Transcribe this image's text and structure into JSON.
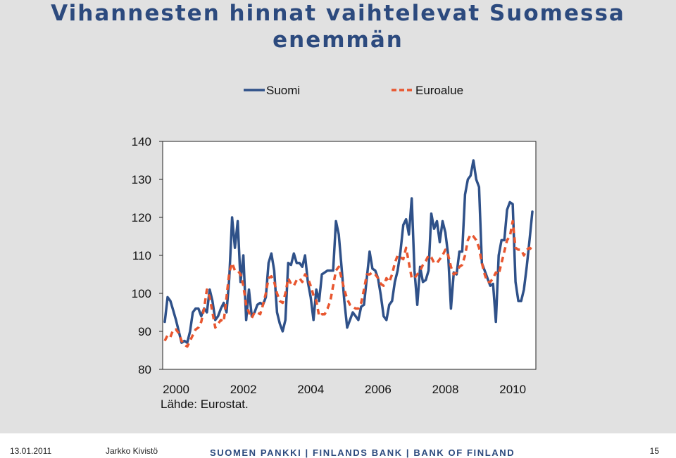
{
  "slide": {
    "title_line1": "Vihannesten hinnat vaihtelevat Suomessa",
    "title_line2": "enemmän",
    "source": "Lähde: Eurostat."
  },
  "footer": {
    "date": "13.01.2011",
    "author": "Jarkko Kivistö",
    "bank": "SUOMEN PANKKI | FINLANDS BANK | BANK OF FINLAND",
    "page": "15"
  },
  "chart_data": {
    "type": "line",
    "x_start": "2000-01",
    "x_step": "month",
    "x_ticks": [
      "2000",
      "2002",
      "2004",
      "2006",
      "2008",
      "2010"
    ],
    "ylim": [
      80,
      140
    ],
    "y_ticks": [
      "140",
      "130",
      "120",
      "110",
      "100",
      "90",
      "80"
    ],
    "legend_position": "top",
    "series": [
      {
        "name": "Suomi",
        "color": "#2f5189",
        "style": "solid",
        "values": [
          92.5,
          99,
          98,
          95.5,
          93,
          90,
          87,
          87.5,
          87,
          90,
          95,
          96,
          96,
          94,
          96,
          95,
          101,
          98,
          93,
          94,
          96,
          97.5,
          95,
          104,
          120,
          112,
          119,
          103,
          110,
          93,
          101,
          94,
          95,
          97,
          97.5,
          97,
          99,
          108,
          110.5,
          106,
          95,
          92,
          90,
          93,
          108,
          107.5,
          110.5,
          108,
          108,
          107,
          110,
          103,
          99,
          93,
          101,
          98,
          105,
          105.5,
          106,
          106,
          106,
          119,
          115.5,
          107,
          98,
          91,
          93,
          95,
          94,
          93,
          96.5,
          97,
          104,
          111,
          106.5,
          106,
          104,
          99.5,
          94,
          93,
          97,
          98,
          103,
          106,
          111,
          118,
          119.5,
          115.5,
          125,
          106,
          97,
          107,
          103,
          103.5,
          106,
          121,
          117,
          119,
          113.5,
          119,
          116,
          110,
          96,
          105.5,
          105,
          111,
          111,
          126,
          130,
          131,
          135,
          130,
          128,
          108,
          106,
          104,
          102,
          102.5,
          92.5,
          110,
          114,
          114,
          122,
          124,
          123.5,
          103,
          98,
          98,
          101,
          107,
          114,
          121.5
        ]
      },
      {
        "name": "Euroalue",
        "color": "#e8562f",
        "style": "dashed",
        "values": [
          87.5,
          89,
          88.5,
          90.5,
          90.5,
          89.5,
          87.5,
          86.5,
          86,
          87.5,
          89,
          90.5,
          91,
          92.5,
          96,
          101,
          99,
          95,
          91,
          92,
          93,
          92.5,
          99,
          105.5,
          108,
          106,
          106,
          105,
          102,
          97,
          95,
          93.5,
          95,
          95,
          94.5,
          97,
          100,
          104,
          104.5,
          103,
          100,
          98,
          97.5,
          100,
          104,
          102.5,
          102,
          103.5,
          104,
          103,
          105,
          104,
          102,
          99.5,
          98,
          94,
          94.5,
          94.5,
          96,
          98,
          102,
          106,
          107,
          104,
          101,
          98.5,
          97,
          96.5,
          96,
          96,
          97.5,
          101,
          105,
          105,
          105.5,
          105,
          104,
          102.5,
          102,
          104,
          103,
          105,
          108,
          110,
          109.5,
          109,
          112,
          108,
          104,
          104,
          105,
          106,
          107.5,
          108.5,
          110,
          109.5,
          108,
          108,
          109,
          110,
          111.5,
          110,
          107,
          105,
          105.5,
          107,
          107.5,
          110,
          114,
          115.5,
          115,
          114,
          112,
          108,
          105,
          103,
          103,
          104,
          105.5,
          105,
          108,
          111,
          114,
          115,
          119,
          112,
          111.5,
          111.5,
          110,
          111.5,
          112,
          111.5
        ]
      }
    ]
  }
}
